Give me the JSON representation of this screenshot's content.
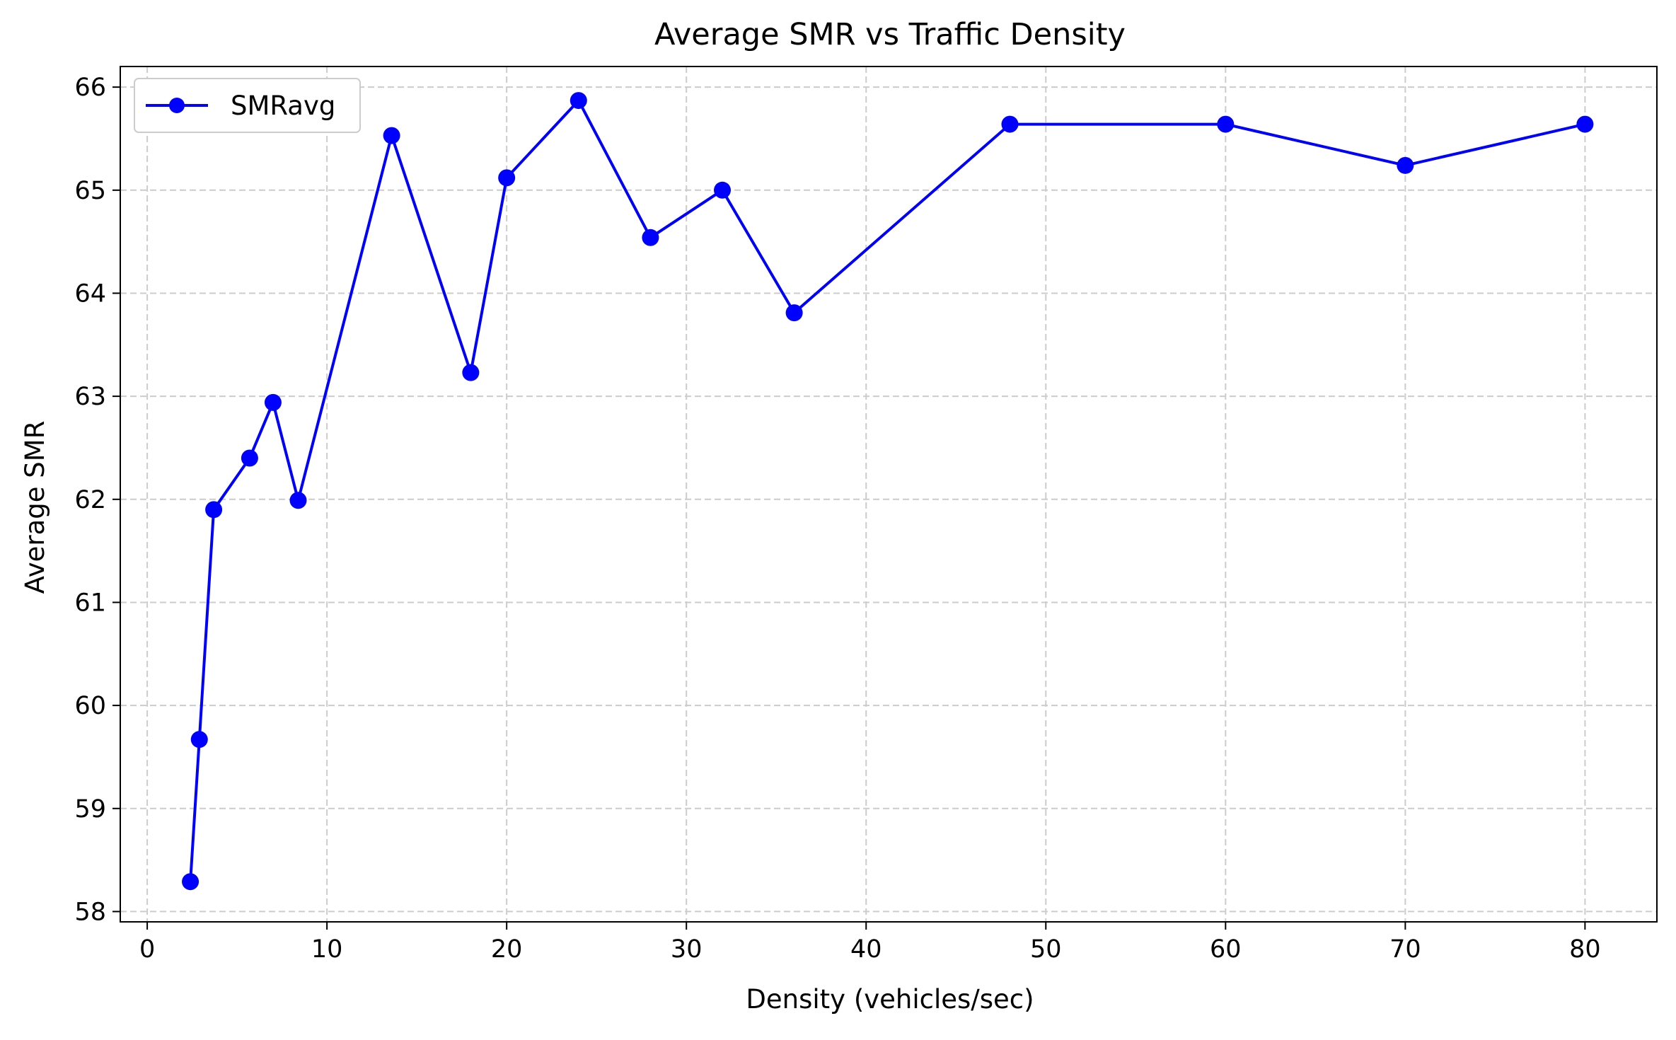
{
  "chart_data": {
    "type": "line",
    "title": "Average SMR vs Traffic Density",
    "xlabel": "Density (vehicles/sec)",
    "ylabel": "Average SMR",
    "xlim": [
      -1.5,
      84
    ],
    "ylim": [
      57.9,
      66.2
    ],
    "xticks": [
      0,
      10,
      20,
      30,
      40,
      50,
      60,
      70,
      80
    ],
    "yticks": [
      58,
      59,
      60,
      61,
      62,
      63,
      64,
      65,
      66
    ],
    "grid": true,
    "legend_position": "upper-left",
    "series": [
      {
        "name": "SMRavg",
        "color": "#0000ff",
        "marker": "circle",
        "x": [
          2.4,
          2.9,
          3.7,
          5.7,
          7.0,
          8.4,
          13.6,
          18.0,
          20.0,
          24.0,
          28.0,
          32.0,
          36.0,
          48.0,
          60.0,
          70.0,
          80.0
        ],
        "y": [
          58.29,
          59.67,
          61.9,
          62.4,
          62.94,
          61.99,
          65.53,
          63.23,
          65.12,
          65.87,
          64.54,
          65.0,
          63.81,
          65.64,
          65.64,
          65.24,
          65.64
        ]
      }
    ]
  },
  "colors": {
    "line": "#0000ff",
    "grid": "#cccccc",
    "axis": "#000000"
  }
}
